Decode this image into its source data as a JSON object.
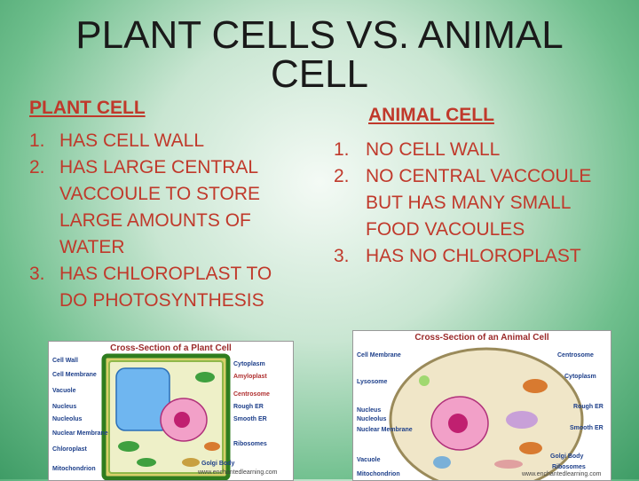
{
  "title": "PLANT CELLS VS. ANIMAL CELL",
  "plant": {
    "heading": "PLANT CELL",
    "items": [
      {
        "num": "1.",
        "text": "HAS CELL WALL"
      },
      {
        "num": "2.",
        "text": "HAS LARGE CENTRAL VACCOULE TO STORE LARGE AMOUNTS OF WATER"
      },
      {
        "num": "3.",
        "text": "HAS CHLOROPLAST TO DO PHOTOSYNTHESIS"
      }
    ],
    "diagram": {
      "title": "Cross-Section of a Plant Cell",
      "labels_left": [
        "Cell Wall",
        "Cell Membrane",
        "Vacuole",
        "Nucleus",
        "Nucleolus",
        "Nuclear Membrane",
        "Chloroplast",
        "Mitochondrion"
      ],
      "labels_right": [
        "Cytoplasm",
        "Amyloplast",
        "Centrosome",
        "Rough ER",
        "Smooth ER",
        "Ribosomes",
        "Golgi Body"
      ],
      "watermark": "www.enchantedlearning.com"
    }
  },
  "animal": {
    "heading": "ANIMAL CELL",
    "items": [
      {
        "num": "1.",
        "text": "NO CELL WALL"
      },
      {
        "num": "2.",
        "text": "NO CENTRAL VACCOULE BUT HAS MANY SMALL FOOD VACOULES"
      },
      {
        "num": "3.",
        "text": "HAS NO CHLOROPLAST"
      }
    ],
    "diagram": {
      "title": "Cross-Section of an Animal Cell",
      "labels_left": [
        "Cell Membrane",
        "Lysosome",
        "Nucleus",
        "Nucleolus",
        "Nuclear Membrane",
        "Vacuole",
        "Mitochondrion"
      ],
      "labels_right": [
        "Centrosome",
        "Cytoplasm",
        "Rough ER",
        "Smooth ER",
        "Golgi Body",
        "Ribosomes"
      ],
      "watermark": "www.enchantedlearning.com"
    }
  },
  "colors": {
    "text_red": "#c0392b",
    "title": "#1a1a1a",
    "bg_green": "#3f9c66"
  }
}
